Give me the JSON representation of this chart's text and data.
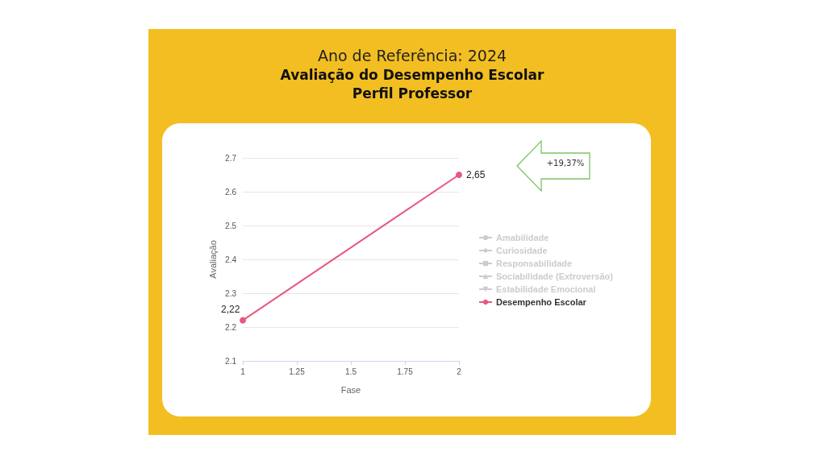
{
  "chart_data": {
    "type": "line",
    "title": "Ano de Referência: 2024",
    "subtitle": "Avaliação do Desempenho Escolar\nPerfil Professor",
    "xlabel": "Fase",
    "ylabel": "Avaliação",
    "x": [
      1,
      2
    ],
    "series": [
      {
        "name": "Amabilidade",
        "color": "#cccccc",
        "marker": "circle",
        "values": [
          null,
          null
        ]
      },
      {
        "name": "Curiosidade",
        "color": "#cccccc",
        "marker": "diamond",
        "values": [
          null,
          null
        ]
      },
      {
        "name": "Responsabilidade",
        "color": "#cccccc",
        "marker": "square",
        "values": [
          null,
          null
        ]
      },
      {
        "name": "Sociabilidade (Extroversão)",
        "color": "#cccccc",
        "marker": "triangle",
        "values": [
          null,
          null
        ]
      },
      {
        "name": "Estabilidade Emocional",
        "color": "#cccccc",
        "marker": "triangle-down",
        "values": [
          null,
          null
        ]
      },
      {
        "name": "Desempenho Escolar",
        "color": "#e8587f",
        "marker": "circle",
        "values": [
          2.22,
          2.65
        ],
        "value_labels": [
          "2,22",
          "2,65"
        ]
      }
    ],
    "xlim": [
      1,
      2
    ],
    "xticks": [
      1,
      1.25,
      1.5,
      1.75,
      2
    ],
    "ylim": [
      2.1,
      2.7
    ],
    "yticks": [
      2.1,
      2.2,
      2.3,
      2.4,
      2.5,
      2.6,
      2.7
    ],
    "grid": "y",
    "legend": "right",
    "annotations": [
      "+19,37%"
    ]
  }
}
